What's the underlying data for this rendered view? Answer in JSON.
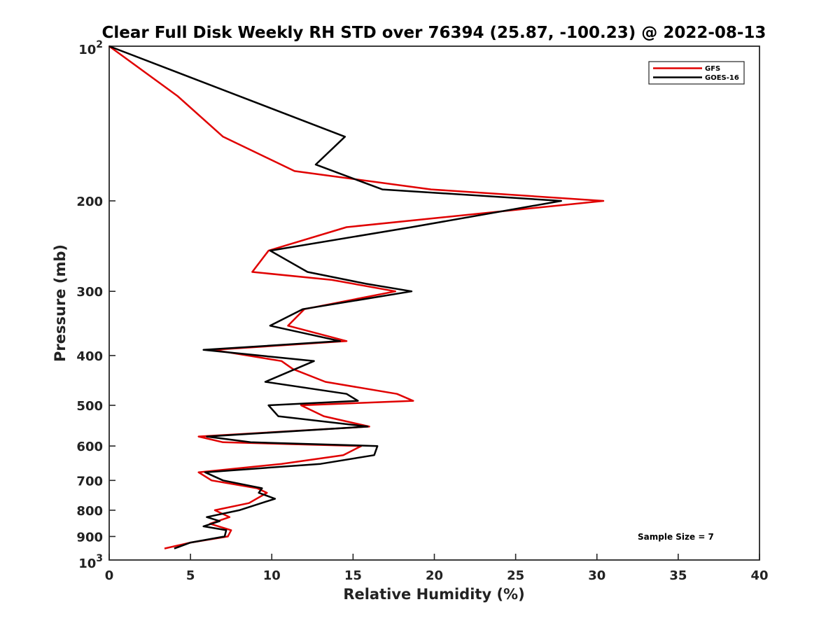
{
  "chart_data": {
    "type": "line",
    "title": "Clear Full Disk Weekly RH STD over 76394 (25.87, -100.23) @ 2022-08-13",
    "xlabel": "Relative Humidity (%)",
    "ylabel": "Pressure (mb)",
    "xlim": [
      0,
      40
    ],
    "ylim": [
      100,
      1000
    ],
    "y_scale": "log",
    "y_inverted": true,
    "grid": false,
    "legend_position": "top-right",
    "x_ticks": [
      0,
      5,
      10,
      15,
      20,
      25,
      30,
      35,
      40
    ],
    "x_tick_labels": [
      "0",
      "5",
      "10",
      "15",
      "20",
      "25",
      "30",
      "35",
      "40"
    ],
    "y_ticks": [
      200,
      300,
      400,
      500,
      600,
      700,
      800,
      900
    ],
    "y_tick_labels": [
      "200",
      "300",
      "400",
      "500",
      "600",
      "700",
      "800",
      "900"
    ],
    "y_end_ticks": [
      {
        "value": 100,
        "base": "10",
        "exp": "2"
      },
      {
        "value": 1000,
        "base": "10",
        "exp": "3"
      }
    ],
    "annotation": "Sample Size = 7",
    "series": [
      {
        "name": "GFS",
        "color": "#e00000",
        "points": [
          [
            0.0,
            100
          ],
          [
            4.2,
            125
          ],
          [
            7.0,
            150
          ],
          [
            11.4,
            175
          ],
          [
            19.8,
            190
          ],
          [
            30.4,
            200
          ],
          [
            14.6,
            225
          ],
          [
            9.8,
            250
          ],
          [
            8.8,
            275
          ],
          [
            13.7,
            285
          ],
          [
            17.6,
            300
          ],
          [
            12.0,
            325
          ],
          [
            11.0,
            350
          ],
          [
            14.6,
            375
          ],
          [
            6.4,
            390
          ],
          [
            10.6,
            410
          ],
          [
            11.3,
            425
          ],
          [
            13.3,
            450
          ],
          [
            17.7,
            475
          ],
          [
            18.7,
            490
          ],
          [
            11.8,
            500
          ],
          [
            13.2,
            525
          ],
          [
            16.0,
            550
          ],
          [
            5.5,
            575
          ],
          [
            7.0,
            590
          ],
          [
            15.5,
            600
          ],
          [
            14.4,
            625
          ],
          [
            10.6,
            650
          ],
          [
            5.5,
            675
          ],
          [
            6.3,
            700
          ],
          [
            9.1,
            725
          ],
          [
            9.7,
            740
          ],
          [
            8.6,
            775
          ],
          [
            6.5,
            800
          ],
          [
            7.4,
            825
          ],
          [
            6.2,
            850
          ],
          [
            7.5,
            875
          ],
          [
            7.3,
            900
          ],
          [
            5.0,
            925
          ],
          [
            3.4,
            950
          ]
        ]
      },
      {
        "name": "GOES-16",
        "color": "#000000",
        "points": [
          [
            0.0,
            100
          ],
          [
            14.5,
            150
          ],
          [
            12.7,
            170
          ],
          [
            16.8,
            190
          ],
          [
            27.8,
            200
          ],
          [
            18.6,
            225
          ],
          [
            9.9,
            250
          ],
          [
            12.2,
            275
          ],
          [
            15.8,
            290
          ],
          [
            18.6,
            300
          ],
          [
            11.9,
            325
          ],
          [
            9.9,
            350
          ],
          [
            14.2,
            375
          ],
          [
            5.8,
            390
          ],
          [
            12.6,
            410
          ],
          [
            9.6,
            450
          ],
          [
            14.6,
            475
          ],
          [
            15.3,
            490
          ],
          [
            9.8,
            500
          ],
          [
            10.4,
            525
          ],
          [
            15.9,
            550
          ],
          [
            6.0,
            575
          ],
          [
            8.7,
            590
          ],
          [
            16.5,
            600
          ],
          [
            16.3,
            625
          ],
          [
            13.0,
            650
          ],
          [
            5.9,
            675
          ],
          [
            7.0,
            700
          ],
          [
            9.4,
            725
          ],
          [
            9.2,
            740
          ],
          [
            10.2,
            760
          ],
          [
            8.0,
            800
          ],
          [
            6.0,
            825
          ],
          [
            6.8,
            840
          ],
          [
            5.8,
            860
          ],
          [
            7.2,
            875
          ],
          [
            7.1,
            900
          ],
          [
            5.0,
            925
          ],
          [
            4.0,
            950
          ]
        ]
      }
    ]
  }
}
